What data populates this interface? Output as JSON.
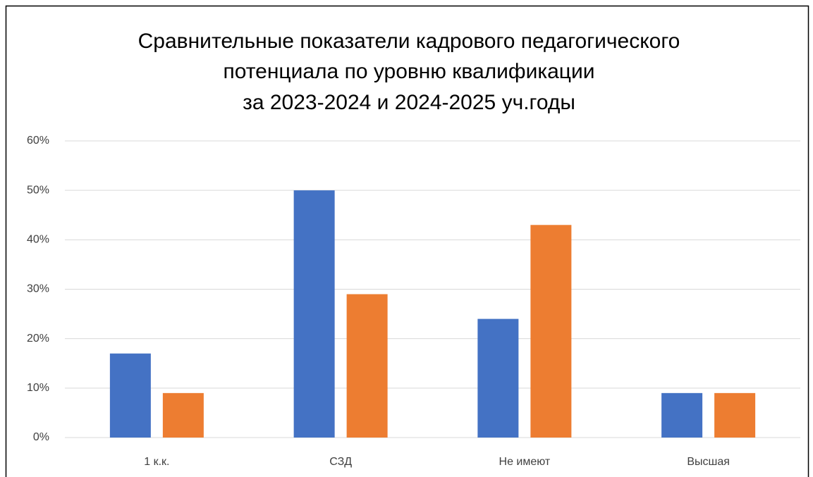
{
  "chart_data": {
    "type": "bar",
    "title": [
      "Сравнительные показатели  кадрового педагогического",
      "потенциала по уровню квалификации",
      "за 2023-2024 и 2024-2025 уч.годы"
    ],
    "categories": [
      "1 к.к.",
      "СЗД",
      "Не имеют",
      "Высшая"
    ],
    "series": [
      {
        "color": "#4472c4",
        "values": [
          17,
          50,
          24,
          9
        ]
      },
      {
        "color": "#ed7d31",
        "values": [
          9,
          29,
          43,
          9
        ]
      }
    ],
    "ylim": [
      0,
      60
    ],
    "yticks": [
      {
        "value": 0,
        "label": "0%"
      },
      {
        "value": 10,
        "label": "10%"
      },
      {
        "value": 20,
        "label": "20%"
      },
      {
        "value": 30,
        "label": "30%"
      },
      {
        "value": 40,
        "label": "40%"
      },
      {
        "value": 50,
        "label": "50%"
      },
      {
        "value": 60,
        "label": "60%"
      }
    ],
    "grid": true
  }
}
